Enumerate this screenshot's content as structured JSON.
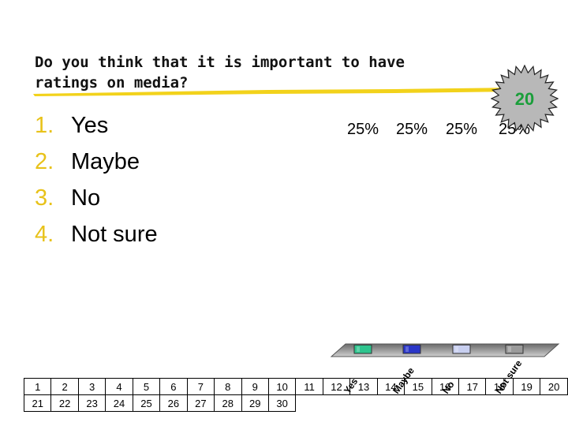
{
  "question": {
    "line1": "Do you think that it is important to have",
    "line2": "ratings on media?"
  },
  "options": [
    {
      "num": "1.",
      "label": "Yes"
    },
    {
      "num": "2.",
      "label": "Maybe"
    },
    {
      "num": "3.",
      "label": "No"
    },
    {
      "num": "4.",
      "label": "Not sure"
    }
  ],
  "countdown": {
    "value": "20",
    "color": "#1a9e3a"
  },
  "chart_data": {
    "type": "bar",
    "categories": [
      "Yes",
      "Maybe",
      "No",
      "Not sure"
    ],
    "values": [
      25,
      25,
      25,
      25
    ],
    "value_labels": [
      "25%",
      "25%",
      "25%",
      "25%"
    ],
    "colors": [
      "#2ec48e",
      "#2a36c8",
      "#c8cff0",
      "#9a9a9a"
    ],
    "ylim": [
      0,
      100
    ],
    "title": "",
    "xlabel": "",
    "ylabel": ""
  },
  "response_grid": {
    "row1": [
      "1",
      "2",
      "3",
      "4",
      "5",
      "6",
      "7",
      "8",
      "9",
      "10",
      "11",
      "12",
      "13",
      "14",
      "15",
      "16",
      "17",
      "18",
      "19",
      "20"
    ],
    "row2": [
      "21",
      "22",
      "23",
      "24",
      "25",
      "26",
      "27",
      "28",
      "29",
      "30"
    ]
  }
}
